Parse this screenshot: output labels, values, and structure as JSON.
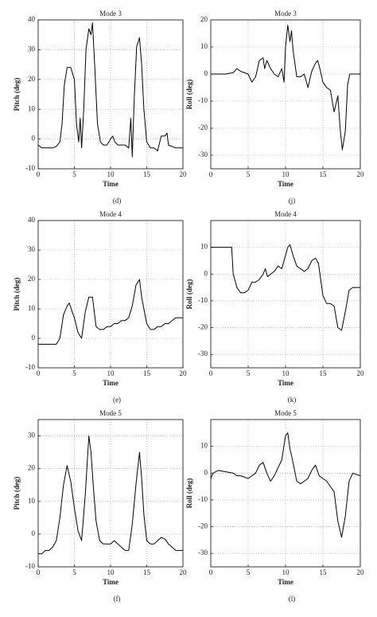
{
  "chart_data": [
    {
      "type": "line",
      "title": "Mode 3",
      "xlabel": "Time",
      "ylabel": "Pitch (deg)",
      "caption": "(d)",
      "color": "#000000",
      "grid": true,
      "xlim": [
        0,
        20
      ],
      "xticks": [
        0,
        5,
        10,
        15,
        20
      ],
      "ylim": [
        -10,
        40
      ],
      "yticks": [
        -10,
        0,
        10,
        20,
        30,
        40
      ],
      "x": [
        0,
        0.5,
        1,
        2,
        2.5,
        3,
        3.3,
        3.6,
        4,
        4.5,
        5,
        5.3,
        5.6,
        5.8,
        6,
        6.3,
        6.6,
        7,
        7.3,
        7.5,
        7.8,
        8.2,
        8.6,
        9,
        9.5,
        10,
        10.3,
        10.6,
        11,
        12,
        12.5,
        12.8,
        13,
        13.3,
        13.6,
        14,
        14.3,
        14.6,
        15,
        15.5,
        16,
        16.5,
        17,
        17.5,
        17.8,
        18,
        19,
        20
      ],
      "values": [
        -2,
        -3,
        -3,
        -3,
        -2.5,
        -1,
        5,
        18,
        24,
        24,
        20,
        5,
        -1,
        7,
        -3,
        10,
        30,
        37,
        35,
        39,
        25,
        5,
        -1,
        -2,
        -2,
        0,
        1,
        -1,
        -2,
        -2,
        -3,
        7,
        -6,
        15,
        31,
        34,
        25,
        10,
        -1,
        -3,
        -3,
        -4,
        1,
        1,
        2,
        -2,
        -3,
        -3
      ]
    },
    {
      "type": "line",
      "title": "Mode 3",
      "xlabel": "Time",
      "ylabel": "Roll (deg)",
      "caption": "(j)",
      "color": "#000000",
      "grid": true,
      "xlim": [
        0,
        20
      ],
      "xticks": [
        0,
        5,
        10,
        15,
        20
      ],
      "ylim": [
        -35,
        20
      ],
      "yticks": [
        -30,
        -20,
        -10,
        0,
        10,
        20
      ],
      "x": [
        0,
        2,
        3,
        3.5,
        4,
        5,
        5.5,
        6,
        6.5,
        7,
        7.2,
        7.5,
        8,
        8.5,
        9,
        9.5,
        9.8,
        10,
        10.3,
        10.6,
        10.8,
        11,
        11.5,
        12,
        12.5,
        13,
        13.5,
        14,
        14.3,
        14.6,
        15,
        15.5,
        16,
        16.5,
        17,
        17.3,
        17.6,
        18,
        18.3,
        18.6,
        19,
        20
      ],
      "values": [
        0,
        0,
        0.5,
        2,
        1,
        0,
        -3,
        -1,
        5,
        6,
        2,
        5,
        2,
        0,
        -1,
        2,
        -3,
        10,
        18,
        12,
        16,
        9,
        -1,
        -1,
        0,
        -5,
        1,
        4,
        5,
        2,
        -3,
        -5,
        -6,
        -14,
        -8,
        -20,
        -28,
        -21,
        -4,
        0,
        0,
        0
      ]
    },
    {
      "type": "line",
      "title": "Mode 4",
      "xlabel": "Time",
      "ylabel": "Pitch (deg)",
      "caption": "(e)",
      "color": "#000000",
      "grid": true,
      "xlim": [
        0,
        20
      ],
      "xticks": [
        0,
        5,
        10,
        15,
        20
      ],
      "ylim": [
        -10,
        40
      ],
      "yticks": [
        -10,
        0,
        10,
        20,
        30,
        40
      ],
      "x": [
        0,
        0.5,
        1,
        2,
        2.5,
        3,
        3.5,
        4,
        4.3,
        4.7,
        5,
        5.5,
        6,
        6.5,
        7,
        7.5,
        8,
        8.5,
        9,
        9.5,
        10,
        10.5,
        11,
        11.5,
        12,
        12.5,
        13,
        13.5,
        14,
        14.3,
        14.6,
        15,
        15.5,
        16,
        16.5,
        17,
        17.5,
        18,
        18.5,
        19,
        19.5,
        20
      ],
      "values": [
        -2,
        -2,
        -2,
        -2,
        -2,
        0,
        8,
        11,
        12,
        9,
        7,
        2,
        0,
        9,
        14,
        14,
        4,
        3,
        3,
        4,
        4,
        5,
        5,
        6,
        6,
        7,
        11,
        18,
        20,
        14,
        10,
        5,
        3,
        3,
        4,
        4,
        5,
        5,
        6,
        7,
        7,
        7
      ]
    },
    {
      "type": "line",
      "title": "Mode 4",
      "xlabel": "Time",
      "ylabel": "Roll (deg)",
      "caption": "(k)",
      "color": "#000000",
      "grid": true,
      "xlim": [
        0,
        20
      ],
      "xticks": [
        0,
        5,
        10,
        15,
        20
      ],
      "ylim": [
        -35,
        20
      ],
      "yticks": [
        -30,
        -20,
        -10,
        0,
        10
      ],
      "x": [
        0,
        1,
        2,
        2.8,
        3,
        3.5,
        4,
        4.5,
        5,
        5.5,
        6,
        6.5,
        7,
        7.3,
        7.6,
        8,
        8.5,
        9,
        9.5,
        10,
        10.3,
        10.6,
        11,
        11.5,
        12,
        12.5,
        13,
        13.5,
        14,
        14.4,
        14.7,
        15,
        15.5,
        16,
        16.5,
        17,
        17.5,
        18,
        18.5,
        19,
        20
      ],
      "values": [
        10,
        10,
        10,
        10,
        0,
        -5,
        -7,
        -7,
        -6,
        -3,
        -3,
        -2,
        0,
        2,
        -1,
        0,
        1,
        3,
        2,
        7,
        10,
        11,
        7,
        3,
        2,
        1,
        2,
        5,
        6,
        4,
        -2,
        -8,
        -11,
        -11,
        -12,
        -20,
        -21,
        -14,
        -6,
        -5,
        -5
      ]
    },
    {
      "type": "line",
      "title": "Mode 5",
      "xlabel": "Time",
      "ylabel": "Pitch (deg)",
      "caption": "(f)",
      "color": "#000000",
      "grid": true,
      "xlim": [
        0,
        20
      ],
      "xticks": [
        0,
        5,
        10,
        15,
        20
      ],
      "ylim": [
        -10,
        35
      ],
      "yticks": [
        -10,
        0,
        10,
        20,
        30
      ],
      "x": [
        0,
        0.5,
        1,
        1.5,
        2,
        2.5,
        3,
        3.5,
        4,
        4.5,
        5,
        5.5,
        6,
        6.5,
        7,
        7.3,
        7.6,
        8,
        8.5,
        9,
        9.5,
        10,
        10.5,
        11,
        11.5,
        12,
        12.5,
        13,
        13.5,
        14,
        14.3,
        14.6,
        15,
        15.5,
        16,
        16.5,
        17,
        17.5,
        18,
        19,
        20
      ],
      "values": [
        -6,
        -6,
        -5,
        -5,
        -4,
        -2,
        5,
        15,
        21,
        16,
        8,
        1,
        -2,
        12,
        30,
        25,
        15,
        4,
        -2,
        -3,
        -3,
        -3,
        -2,
        -3,
        -4,
        -5,
        -5,
        3,
        15,
        25,
        17,
        6,
        -2,
        -3,
        -3,
        -2,
        -1,
        -1.5,
        -3,
        -5,
        -5
      ]
    },
    {
      "type": "line",
      "title": "Mode 5",
      "xlabel": "Time",
      "ylabel": "Roll (deg)",
      "caption": "(l)",
      "color": "#000000",
      "grid": true,
      "xlim": [
        0,
        20
      ],
      "xticks": [
        0,
        5,
        10,
        15,
        20
      ],
      "ylim": [
        -35,
        20
      ],
      "yticks": [
        -30,
        -20,
        -10,
        0,
        10
      ],
      "x": [
        0,
        0.3,
        1,
        2,
        3,
        3.5,
        4,
        5,
        5.5,
        6,
        6.5,
        7,
        7.5,
        8,
        8.5,
        9,
        9.5,
        10,
        10.3,
        10.6,
        11,
        11.5,
        12,
        12.5,
        13,
        13.5,
        14,
        14.5,
        15,
        15.5,
        16,
        16.5,
        17,
        17.5,
        18,
        18.5,
        19,
        20
      ],
      "values": [
        -2,
        0,
        1,
        0.5,
        0,
        -1,
        -1,
        -2,
        -1,
        0,
        3,
        4,
        0,
        -3,
        -1,
        2,
        5,
        14,
        15,
        9,
        4,
        -3,
        -4,
        -3,
        -2,
        1,
        3,
        -1,
        -2,
        -3,
        -5,
        -7,
        -18,
        -24,
        -16,
        -3,
        0,
        -1
      ]
    }
  ]
}
